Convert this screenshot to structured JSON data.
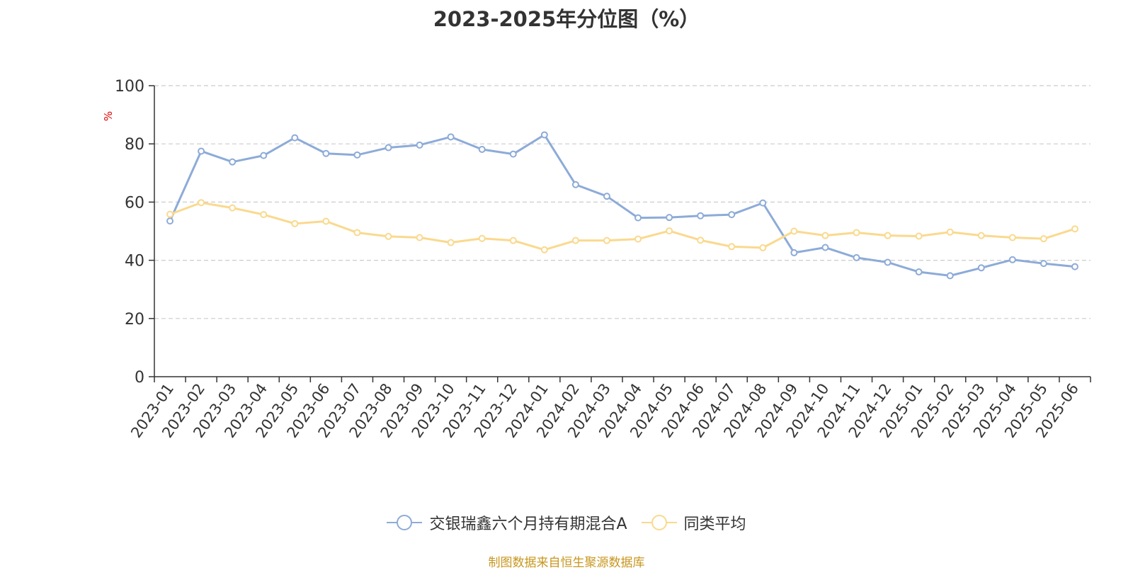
{
  "colors": {
    "fund": "#8dabd8",
    "avg": "#fad98e",
    "unit": "#e00000",
    "axis": "#333333",
    "grid": "#cccccc",
    "source": "#c8961e"
  },
  "chart_data": {
    "type": "line",
    "title": "2023-2025年分位图（%）",
    "ylabel": "%",
    "ylim": [
      0,
      100
    ],
    "yticks": [
      "0",
      "20",
      "40",
      "60",
      "80",
      "100"
    ],
    "grid": true,
    "legend_position": "bottom",
    "categories": [
      "2023-01",
      "2023-02",
      "2023-03",
      "2023-04",
      "2023-05",
      "2023-06",
      "2023-07",
      "2023-08",
      "2023-09",
      "2023-10",
      "2023-11",
      "2023-12",
      "2024-01",
      "2024-02",
      "2024-03",
      "2024-04",
      "2024-05",
      "2024-06",
      "2024-07",
      "2024-08",
      "2024-09",
      "2024-10",
      "2024-11",
      "2024-12",
      "2025-01",
      "2025-02",
      "2025-03",
      "2025-04",
      "2025-05",
      "2025-06"
    ],
    "series": [
      {
        "name": "交银瑞鑫六个月持有期混合A",
        "values": [
          53.5,
          77.5,
          73.8,
          76.0,
          82.1,
          76.7,
          76.2,
          78.7,
          79.6,
          82.4,
          78.1,
          76.5,
          83.1,
          66.0,
          62.0,
          54.6,
          54.7,
          55.3,
          55.7,
          59.7,
          42.6,
          44.4,
          40.9,
          39.3,
          36.0,
          34.7,
          37.4,
          40.2,
          38.9,
          37.8
        ]
      },
      {
        "name": "同类平均",
        "values": [
          55.8,
          59.8,
          58.0,
          55.7,
          52.6,
          53.4,
          49.5,
          48.2,
          47.8,
          46.1,
          47.5,
          46.8,
          43.6,
          46.8,
          46.8,
          47.3,
          50.1,
          46.9,
          44.7,
          44.3,
          50.0,
          48.5,
          49.5,
          48.5,
          48.3,
          49.7,
          48.5,
          47.8,
          47.4,
          50.8
        ]
      }
    ]
  },
  "source": "制图数据来自恒生聚源数据库"
}
